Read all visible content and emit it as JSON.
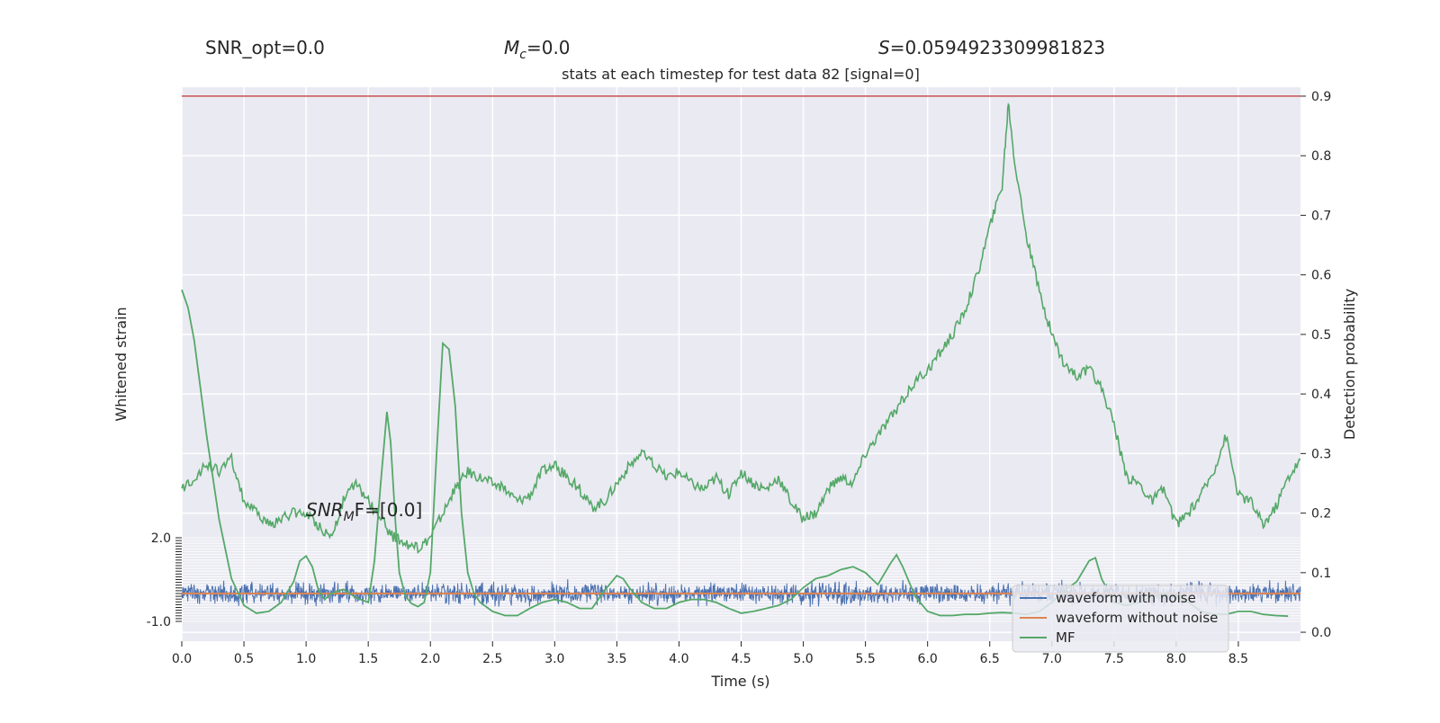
{
  "header": {
    "snr_opt": "SNR_opt=0.0",
    "mc_symbol": "M",
    "mc_sub": "c",
    "mc_value": "=0.0",
    "s_symbol": "S",
    "s_value": "=0.0594923309981823"
  },
  "snr_mf": {
    "prefix": "SNR",
    "sub": "M",
    "suffix": "F=[0.0]"
  },
  "chart_data": {
    "type": "line",
    "title": "stats at each timestep for test data 82 [signal=0]",
    "xlabel": "Time (s)",
    "ylabel_left": "Whitened strain",
    "ylabel_right": "Detection probability",
    "xlim": [
      0.0,
      9.0
    ],
    "ylim_right": [
      -0.015,
      0.915
    ],
    "ylim_strain": [
      -1.0,
      2.0
    ],
    "x_ticks": [
      "0.0",
      "0.5",
      "1.0",
      "1.5",
      "2.0",
      "2.5",
      "3.0",
      "3.5",
      "4.0",
      "4.5",
      "5.0",
      "5.5",
      "6.0",
      "6.5",
      "7.0",
      "7.5",
      "8.0",
      "8.5"
    ],
    "x_tick_values": [
      0.0,
      0.5,
      1.0,
      1.5,
      2.0,
      2.5,
      3.0,
      3.5,
      4.0,
      4.5,
      5.0,
      5.5,
      6.0,
      6.5,
      7.0,
      7.5,
      8.0,
      8.5
    ],
    "y_ticks_right": [
      "0.0",
      "0.1",
      "0.2",
      "0.3",
      "0.4",
      "0.5",
      "0.6",
      "0.7",
      "0.8",
      "0.9"
    ],
    "y_tick_values_right": [
      0.0,
      0.1,
      0.2,
      0.3,
      0.4,
      0.5,
      0.6,
      0.7,
      0.8,
      0.9
    ],
    "strain_ticks": [
      "-1.0",
      "2.0"
    ],
    "strain_tick_values": [
      -1.0,
      2.0
    ],
    "threshold": 0.9,
    "grid": true,
    "legend_position": "lower-right",
    "colors": {
      "noise": "#4c72b0",
      "clean": "#dd8452",
      "mf": "#55a868",
      "threshold": "#c44e52",
      "axes_bg": "#eaeaf2",
      "grid": "#ffffff"
    },
    "series": [
      {
        "name": "MF",
        "x": [
          0.0,
          0.05,
          0.1,
          0.2,
          0.3,
          0.4,
          0.5,
          0.6,
          0.7,
          0.8,
          0.9,
          0.95,
          1.0,
          1.05,
          1.1,
          1.15,
          1.2,
          1.3,
          1.4,
          1.5,
          1.55,
          1.6,
          1.65,
          1.68,
          1.72,
          1.75,
          1.8,
          1.85,
          1.9,
          1.95,
          2.0,
          2.05,
          2.1,
          2.15,
          2.2,
          2.25,
          2.3,
          2.35,
          2.4,
          2.5,
          2.6,
          2.7,
          2.8,
          2.9,
          3.0,
          3.1,
          3.2,
          3.3,
          3.4,
          3.5,
          3.55,
          3.6,
          3.7,
          3.8,
          3.9,
          4.0,
          4.1,
          4.2,
          4.3,
          4.4,
          4.5,
          4.6,
          4.7,
          4.8,
          4.9,
          5.0,
          5.1,
          5.2,
          5.3,
          5.4,
          5.5,
          5.6,
          5.7,
          5.75,
          5.8,
          5.9,
          6.0,
          6.1,
          6.2,
          6.3,
          6.4,
          6.5,
          6.6,
          6.7,
          6.8,
          6.9,
          7.0,
          7.1,
          7.2,
          7.3,
          7.35,
          7.4,
          7.5,
          7.6,
          7.7,
          7.8,
          7.9,
          8.0,
          8.1,
          8.2,
          8.3,
          8.4,
          8.5,
          8.6,
          8.7,
          8.8,
          8.9
        ],
        "values": [
          0.575,
          0.545,
          0.49,
          0.33,
          0.19,
          0.09,
          0.045,
          0.032,
          0.035,
          0.05,
          0.085,
          0.12,
          0.128,
          0.11,
          0.07,
          0.055,
          0.065,
          0.072,
          0.058,
          0.05,
          0.12,
          0.25,
          0.37,
          0.32,
          0.18,
          0.1,
          0.06,
          0.048,
          0.043,
          0.05,
          0.1,
          0.3,
          0.485,
          0.475,
          0.38,
          0.2,
          0.1,
          0.065,
          0.05,
          0.035,
          0.028,
          0.028,
          0.04,
          0.05,
          0.055,
          0.05,
          0.04,
          0.04,
          0.07,
          0.095,
          0.09,
          0.075,
          0.05,
          0.04,
          0.04,
          0.05,
          0.055,
          0.055,
          0.05,
          0.04,
          0.032,
          0.035,
          0.04,
          0.045,
          0.055,
          0.075,
          0.09,
          0.095,
          0.105,
          0.11,
          0.1,
          0.08,
          0.115,
          0.13,
          0.11,
          0.06,
          0.035,
          0.028,
          0.028,
          0.03,
          0.03,
          0.032,
          0.033,
          0.032,
          0.03,
          0.035,
          0.05,
          0.07,
          0.085,
          0.12,
          0.125,
          0.09,
          0.05,
          0.045,
          0.05,
          0.06,
          0.065,
          0.06,
          0.05,
          0.035,
          0.03,
          0.03,
          0.035,
          0.035,
          0.03,
          0.028,
          0.027
        ]
      },
      {
        "name": "Detection probability",
        "x": [
          0.0,
          0.1,
          0.2,
          0.3,
          0.4,
          0.5,
          0.6,
          0.7,
          0.8,
          0.9,
          1.0,
          1.1,
          1.2,
          1.3,
          1.4,
          1.5,
          1.6,
          1.7,
          1.8,
          1.9,
          2.0,
          2.1,
          2.2,
          2.3,
          2.4,
          2.5,
          2.6,
          2.7,
          2.8,
          2.9,
          3.0,
          3.1,
          3.2,
          3.3,
          3.4,
          3.5,
          3.6,
          3.7,
          3.8,
          3.9,
          4.0,
          4.1,
          4.2,
          4.3,
          4.4,
          4.5,
          4.6,
          4.7,
          4.8,
          4.9,
          5.0,
          5.1,
          5.2,
          5.3,
          5.4,
          5.5,
          5.6,
          5.7,
          5.8,
          5.9,
          6.0,
          6.1,
          6.2,
          6.3,
          6.4,
          6.5,
          6.6,
          6.65,
          6.7,
          6.8,
          6.9,
          7.0,
          7.1,
          7.2,
          7.3,
          7.4,
          7.5,
          7.6,
          7.7,
          7.8,
          7.9,
          8.0,
          8.1,
          8.2,
          8.3,
          8.4,
          8.5,
          8.6,
          8.7,
          8.8,
          8.9,
          9.0
        ],
        "values": [
          0.24,
          0.26,
          0.28,
          0.27,
          0.29,
          0.22,
          0.2,
          0.18,
          0.19,
          0.2,
          0.2,
          0.18,
          0.16,
          0.22,
          0.25,
          0.22,
          0.19,
          0.16,
          0.15,
          0.14,
          0.16,
          0.2,
          0.24,
          0.27,
          0.26,
          0.25,
          0.24,
          0.22,
          0.23,
          0.27,
          0.28,
          0.26,
          0.24,
          0.21,
          0.22,
          0.25,
          0.28,
          0.3,
          0.28,
          0.26,
          0.27,
          0.25,
          0.24,
          0.26,
          0.23,
          0.27,
          0.25,
          0.24,
          0.26,
          0.22,
          0.19,
          0.2,
          0.24,
          0.26,
          0.25,
          0.3,
          0.33,
          0.36,
          0.39,
          0.42,
          0.44,
          0.47,
          0.5,
          0.54,
          0.6,
          0.68,
          0.75,
          0.89,
          0.79,
          0.66,
          0.57,
          0.5,
          0.45,
          0.43,
          0.44,
          0.41,
          0.35,
          0.26,
          0.25,
          0.22,
          0.24,
          0.18,
          0.2,
          0.23,
          0.27,
          0.33,
          0.23,
          0.22,
          0.18,
          0.21,
          0.26,
          0.29
        ]
      },
      {
        "name": "waveform with noise",
        "amplitude_range": [
          -0.55,
          0.55
        ]
      },
      {
        "name": "waveform without noise",
        "constant": 0.0
      }
    ],
    "legend": [
      "waveform with noise",
      "waveform without noise",
      "MF"
    ]
  }
}
